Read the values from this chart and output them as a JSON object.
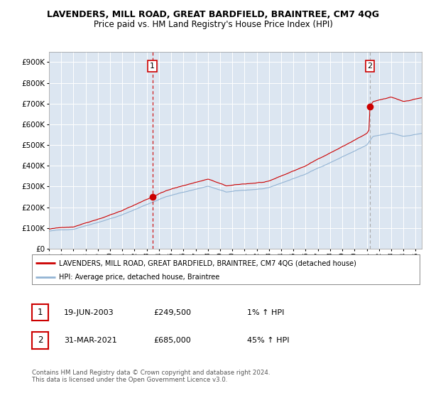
{
  "title": "LAVENDERS, MILL ROAD, GREAT BARDFIELD, BRAINTREE, CM7 4QG",
  "subtitle": "Price paid vs. HM Land Registry's House Price Index (HPI)",
  "legend_line1": "LAVENDERS, MILL ROAD, GREAT BARDFIELD, BRAINTREE, CM7 4QG (detached house)",
  "legend_line2": "HPI: Average price, detached house, Braintree",
  "table_row1_num": "1",
  "table_row1_date": "19-JUN-2003",
  "table_row1_price": "£249,500",
  "table_row1_hpi": "1% ↑ HPI",
  "table_row2_num": "2",
  "table_row2_date": "31-MAR-2021",
  "table_row2_price": "£685,000",
  "table_row2_hpi": "45% ↑ HPI",
  "footnote": "Contains HM Land Registry data © Crown copyright and database right 2024.\nThis data is licensed under the Open Government Licence v3.0.",
  "ylim": [
    0,
    950000
  ],
  "yticks": [
    0,
    100000,
    200000,
    300000,
    400000,
    500000,
    600000,
    700000,
    800000,
    900000
  ],
  "xlim_start": 1995.0,
  "xlim_end": 2025.5,
  "sale1_year": 2003.46,
  "sale1_price": 249500,
  "sale2_year": 2021.25,
  "sale2_price": 685000,
  "background_color": "#dce6f1",
  "grid_color": "#ffffff",
  "line_color_property": "#cc0000",
  "line_color_hpi": "#93b4d4",
  "marker_color": "#cc0000",
  "dashed1_color": "#cc0000",
  "dashed2_color": "#aaaaaa",
  "title_fontsize": 9,
  "subtitle_fontsize": 8.5
}
